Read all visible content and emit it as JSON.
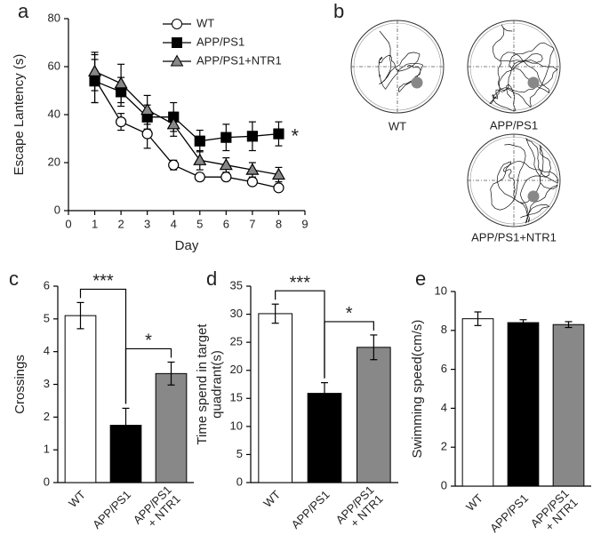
{
  "chart_data": [
    {
      "type": "line",
      "panel_label": "a",
      "x_label": "Day",
      "y_label": "Escape Lantency (s)",
      "x": [
        1,
        2,
        3,
        4,
        5,
        6,
        7,
        8
      ],
      "xlim": [
        0,
        9
      ],
      "xticks": [
        0,
        1,
        2,
        3,
        4,
        5,
        6,
        7,
        8,
        9
      ],
      "ylim": [
        0,
        80
      ],
      "yticks": [
        0,
        20,
        40,
        60,
        80
      ],
      "legend": "upper-center",
      "annotation": "*",
      "series": [
        {
          "name": "WT",
          "color": "#ffffff",
          "marker": "circle",
          "values": [
            55,
            37,
            32,
            19,
            14,
            14,
            12,
            9.5
          ],
          "errors": [
            10,
            3.5,
            6,
            2,
            1.5,
            1.5,
            1.5,
            1.5
          ]
        },
        {
          "name": "APP/PS1",
          "color": "#000000",
          "marker": "square",
          "values": [
            54,
            49.5,
            39,
            39,
            29,
            30.5,
            31,
            32
          ],
          "errors": [
            9,
            6,
            5,
            6,
            4.5,
            5.5,
            6,
            5
          ]
        },
        {
          "name": "APP/PS1+NTR1",
          "color": "#888888",
          "marker": "triangle",
          "values": [
            58,
            53,
            42,
            36,
            21,
            19,
            17,
            15
          ],
          "errors": [
            8,
            8,
            6,
            5,
            4,
            3,
            3,
            3
          ]
        }
      ]
    },
    {
      "type": "bar",
      "panel_label": "c",
      "y_label": "Crossings",
      "categories": [
        "WT",
        "APP/PS1",
        "APP/PS1\n+ NTR1"
      ],
      "values": [
        5.1,
        1.75,
        3.33
      ],
      "errors": [
        0.4,
        0.52,
        0.35
      ],
      "colors": [
        "#ffffff",
        "#000000",
        "#888888"
      ],
      "ylim": [
        0,
        6
      ],
      "yticks": [
        0,
        1,
        2,
        3,
        4,
        5,
        6
      ],
      "annotations": [
        "***",
        "*"
      ]
    },
    {
      "type": "bar",
      "panel_label": "d",
      "y_label": "Time spend in target\nquadrant(s)",
      "categories": [
        "WT",
        "APP/PS1",
        "APP/PS1\n+ NTR1"
      ],
      "values": [
        30.1,
        15.9,
        24.1
      ],
      "errors": [
        1.7,
        1.9,
        2.2
      ],
      "colors": [
        "#ffffff",
        "#000000",
        "#888888"
      ],
      "ylim": [
        0,
        35
      ],
      "yticks": [
        0,
        5,
        10,
        15,
        20,
        25,
        30,
        35
      ],
      "annotations": [
        "***",
        "*"
      ]
    },
    {
      "type": "bar",
      "panel_label": "e",
      "y_label": "Swimming speed(cm/s)",
      "categories": [
        "WT",
        "APP/PS1",
        "APP/PS1\n+ NTR1"
      ],
      "values": [
        8.6,
        8.4,
        8.3
      ],
      "errors": [
        0.35,
        0.15,
        0.15
      ],
      "colors": [
        "#ffffff",
        "#000000",
        "#888888"
      ],
      "ylim": [
        0,
        10
      ],
      "yticks": [
        0,
        2,
        4,
        6,
        8,
        10
      ],
      "annotations": []
    }
  ],
  "panel_b": {
    "panel_label": "b",
    "tracks": [
      "WT",
      "APP/PS1",
      "APP/PS1+NTR1"
    ]
  }
}
